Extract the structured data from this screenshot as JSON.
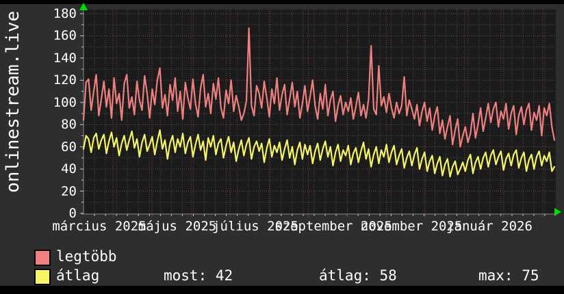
{
  "site": {
    "vertical_title": "onlinestream.live"
  },
  "legend": [
    {
      "label": "legtöbb",
      "color": "#f08080"
    },
    {
      "label": "átlag",
      "color": "#f5f567"
    }
  ],
  "stats": [
    {
      "label": "most",
      "value": 42,
      "text": "most: 42"
    },
    {
      "label": "átlag",
      "value": 58,
      "text": "átlag: 58"
    },
    {
      "label": "max",
      "value": 75,
      "text": "max: 75"
    }
  ],
  "chart_data": {
    "type": "line",
    "title": "",
    "xlabel": "",
    "ylabel": "",
    "ylim": [
      0,
      180
    ],
    "y_ticks": [
      0,
      20,
      40,
      60,
      80,
      100,
      120,
      140,
      160,
      180
    ],
    "x_tick_labels": [
      "március 2025",
      "május 2025",
      "július 2025",
      "szeptember 2025",
      "november 2025",
      "január 2026"
    ],
    "grid": true,
    "legend_position": "bottom-left",
    "style": {
      "page_bg": "#000000",
      "panel_bg": "#2e2e2e",
      "plot_bg": "#1b1b1b",
      "major_grid": "#8f3d3d",
      "minor_grid": "#4d4d4d",
      "axis": "#8a8a8a",
      "tick": "#cccccc",
      "arrow": "#00dc00",
      "text": "#ffffff"
    },
    "series": [
      {
        "name": "legtöbb",
        "color": "#f08080",
        "values": [
          84,
          118,
          121,
          93,
          110,
          125,
          88,
          103,
          119,
          96,
          112,
          86,
          122,
          99,
          108,
          84,
          117,
          125,
          95,
          105,
          89,
          119,
          102,
          93,
          124,
          108,
          86,
          112,
          98,
          120,
          131,
          95,
          107,
          88,
          116,
          102,
          122,
          92,
          110,
          85,
          118,
          104,
          94,
          121,
          99,
          87,
          113,
          125,
          96,
          108,
          90,
          117,
          103,
          122,
          95,
          86,
          111,
          99,
          120,
          92,
          106,
          96,
          84,
          90,
          101,
          167,
          97,
          88,
          115,
          108,
          95,
          119,
          104,
          87,
          112,
          99,
          122,
          93,
          107,
          116,
          89,
          103,
          118,
          96,
          110,
          86,
          99,
          115,
          92,
          105,
          120,
          97,
          85,
          108,
          94,
          116,
          88,
          102,
          110,
          83,
          97,
          106,
          89,
          100,
          92,
          104,
          85,
          96,
          109,
          88,
          98,
          86,
          103,
          151,
          94,
          89,
          133,
          97,
          105,
          91,
          108,
          95,
          86,
          100,
          90,
          97,
          123,
          88,
          102,
          94,
          85,
          98,
          79,
          92,
          100,
          83,
          95,
          75,
          88,
          96,
          72,
          84,
          67,
          78,
          88,
          62,
          75,
          85,
          60,
          70,
          78,
          64,
          72,
          90,
          68,
          80,
          95,
          74,
          86,
          99,
          82,
          94,
          100,
          78,
          92,
          85,
          99,
          76,
          90,
          97,
          71,
          88,
          96,
          80,
          93,
          99,
          75,
          91,
          84,
          97,
          70,
          95,
          88,
          99,
          78,
          66
        ]
      },
      {
        "name": "átlag",
        "color": "#f5f567",
        "values": [
          58,
          70,
          67,
          55,
          68,
          72,
          58,
          66,
          71,
          54,
          65,
          73,
          60,
          68,
          52,
          63,
          70,
          57,
          66,
          74,
          59,
          67,
          51,
          64,
          71,
          56,
          62,
          69,
          53,
          65,
          75,
          58,
          66,
          49,
          63,
          70,
          55,
          67,
          60,
          72,
          54,
          64,
          69,
          51,
          62,
          71,
          57,
          65,
          48,
          68,
          60,
          70,
          53,
          63,
          67,
          50,
          61,
          69,
          55,
          64,
          47,
          58,
          66,
          52,
          62,
          68,
          49,
          60,
          65,
          56,
          63,
          46,
          59,
          67,
          51,
          61,
          55,
          64,
          48,
          58,
          66,
          50,
          60,
          44,
          57,
          64,
          49,
          62,
          53,
          61,
          45,
          56,
          63,
          48,
          58,
          65,
          51,
          60,
          43,
          55,
          62,
          47,
          57,
          52,
          61,
          44,
          54,
          59,
          46,
          56,
          64,
          49,
          58,
          42,
          53,
          60,
          45,
          57,
          51,
          62,
          46,
          55,
          61,
          44,
          52,
          58,
          41,
          50,
          56,
          43,
          53,
          59,
          40,
          49,
          55,
          38,
          47,
          52,
          36,
          45,
          51,
          34,
          44,
          49,
          33,
          42,
          47,
          35,
          40,
          46,
          38,
          48,
          53,
          36,
          46,
          51,
          40,
          50,
          55,
          42,
          52,
          57,
          44,
          51,
          56,
          39,
          49,
          54,
          43,
          53,
          57,
          41,
          50,
          55,
          38,
          48,
          53,
          40,
          51,
          56,
          43,
          52,
          47,
          55,
          38,
          42
        ]
      }
    ]
  }
}
